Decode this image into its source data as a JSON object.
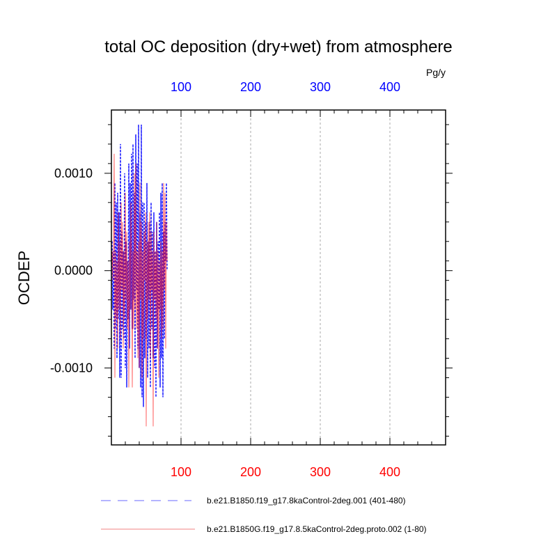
{
  "chart_data": {
    "type": "line",
    "title": "total OC deposition (dry+wet) from atmosphere",
    "ylabel": "OCDEP",
    "top_axis_units": "Pg/y",
    "xlim": [
      0,
      480
    ],
    "ylim": [
      -0.00179,
      0.00165
    ],
    "grid": "vertical dashed at x ticks",
    "x_ticks": [
      100,
      200,
      300,
      400
    ],
    "x_tick_labels": [
      "100",
      "200",
      "300",
      "400"
    ],
    "y_ticks": [
      0.001,
      0.0,
      -0.001
    ],
    "y_tick_labels": [
      "0.0010",
      "0.0000",
      "-0.0010"
    ],
    "legend_position": "bottom",
    "series": [
      {
        "name": "b.e21.B1850.f19_g17.8kaControl-2deg.001 (401-480)",
        "color": "#0000ff",
        "style": "dashed",
        "axis": "top",
        "values": [
          0.0003,
          -0.0004,
          0.0002,
          -0.0008,
          0.0009,
          -0.0006,
          0.0007,
          -0.0009,
          0.0008,
          -0.0005,
          0.0006,
          -0.0011,
          0.0013,
          -0.0011,
          0.0004,
          -0.0006,
          0.0002,
          -0.0007,
          0.001,
          -0.001,
          0.0003,
          -0.0012,
          0.0001,
          -0.0005,
          0.0011,
          -0.0008,
          0.0009,
          -0.0004,
          0.0012,
          -0.0006,
          0.0013,
          -0.0003,
          0.0008,
          -0.0009,
          0.0014,
          -0.0002,
          0.0011,
          -0.0008,
          0.0015,
          -0.001,
          0.0006,
          -0.0012,
          0.0015,
          -0.0013,
          0.0007,
          -0.0014,
          0.0007,
          -0.0009,
          0.0005,
          -0.0007,
          0.0009,
          -0.0011,
          0.0003,
          -0.0008,
          0.0005,
          -0.0012,
          0.0007,
          -0.0006,
          0.0004,
          -0.0009,
          0.0006,
          -0.001,
          0.0002,
          -0.0013,
          0.0005,
          -0.0008,
          0.0003,
          -0.0004,
          0.0006,
          -0.0012,
          0.0008,
          -0.0009,
          0.0009,
          -0.0013,
          0.0004,
          -0.0007,
          0.0005,
          0.0001,
          0.0009,
          0.0
        ]
      },
      {
        "name": "b.e21.B1850G.f19_g17.8.5kaControl-2deg.proto.002 (1-80)",
        "color": "#ff0000",
        "style": "solid",
        "axis": "bottom",
        "values": [
          0.0002,
          -0.0001,
          0.0004,
          0.0012,
          -0.0011,
          0.0002,
          -0.0005,
          0.0001,
          -0.0008,
          0.0006,
          -0.0004,
          0.0003,
          -0.0007,
          0.0007,
          -0.0002,
          0.0005,
          -0.0008,
          0.0002,
          -0.0005,
          0.0008,
          -0.0003,
          0.0004,
          -0.0006,
          0.0001,
          -0.0012,
          0.0003,
          -0.0004,
          0.0007,
          0.0001,
          -0.0012,
          0.0002,
          -0.0006,
          0.001,
          -0.0004,
          0.0011,
          -0.0006,
          0.0002,
          -0.0009,
          0.0003,
          -0.001,
          0.0009,
          -0.0003,
          0.0005,
          -0.0011,
          0.0002,
          -0.0007,
          0.0004,
          -0.0001,
          0.0006,
          -0.0016,
          0.0003,
          -0.0005,
          0.0005,
          -0.0003,
          0.0006,
          -0.0009,
          0.0004,
          -0.0002,
          0.0002,
          -0.0016,
          0.0004,
          -0.0003,
          0.0002,
          -0.0005,
          0.0005,
          -0.0008,
          0.0002,
          -0.0011,
          0.0001,
          -0.0004,
          0.0003,
          -0.0007,
          0.0002,
          -0.0006,
          0.0009,
          -0.0002,
          0.0008,
          -0.0008,
          0.0005,
          0.0001
        ]
      }
    ]
  }
}
